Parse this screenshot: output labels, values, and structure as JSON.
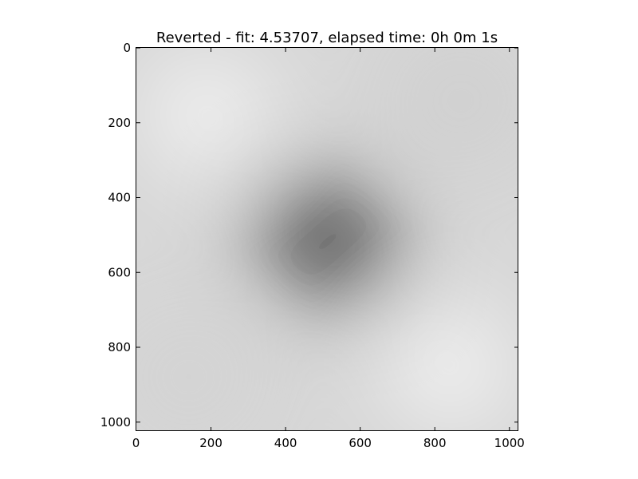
{
  "chart_data": {
    "type": "heatmap",
    "title": "Reverted - fit: 4.53707, elapsed time: 0h 0m 1s",
    "xlabel": "",
    "ylabel": "",
    "xlim": [
      0,
      1024
    ],
    "ylim": [
      1024,
      0
    ],
    "y_axis_inverted": true,
    "colormap": "gray",
    "grid": false,
    "x_ticks": [
      0,
      200,
      400,
      600,
      800,
      1000
    ],
    "x_tick_labels": [
      "0",
      "200",
      "400",
      "600",
      "800",
      "1000"
    ],
    "y_ticks": [
      0,
      200,
      400,
      600,
      800,
      1000
    ],
    "y_tick_labels": [
      "0",
      "200",
      "400",
      "600",
      "800",
      "1000"
    ],
    "image_size": [
      1024,
      1024
    ],
    "features": [
      {
        "kind": "dark-minimum",
        "x": 512,
        "y": 512,
        "intensity": 0.0,
        "note": "darkest region, elongated along diagonal"
      },
      {
        "kind": "bright-maximum",
        "x": 190,
        "y": 180,
        "intensity": 1.0
      },
      {
        "kind": "bright-maximum",
        "x": 840,
        "y": 850,
        "intensity": 1.0
      },
      {
        "kind": "mid-gray",
        "x": 870,
        "y": 140,
        "intensity": 0.8
      },
      {
        "kind": "mid-gray",
        "x": 140,
        "y": 880,
        "intensity": 0.82
      }
    ]
  }
}
